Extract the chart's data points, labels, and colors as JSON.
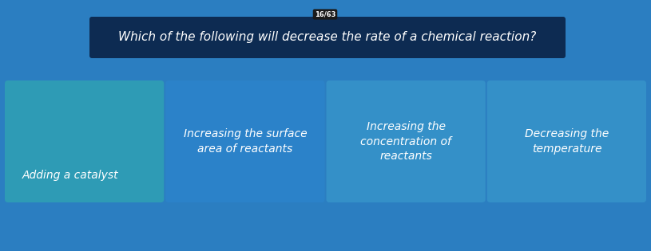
{
  "title": "Which of the following will decrease the rate of a chemical reaction?",
  "title_badge": "16/63",
  "background_color": "#2B7EC1",
  "title_box_color": "#0D2B52",
  "title_text_color": "#FFFFFF",
  "badge_color": "#1A1A1A",
  "badge_text_color": "#FFFFFF",
  "options": [
    {
      "lines": [
        "Adding a catalyst"
      ],
      "color": "#2E9BB5"
    },
    {
      "lines": [
        "Increasing the surface",
        "area of reactants"
      ],
      "color": "#2B82C9"
    },
    {
      "lines": [
        "Increasing the",
        "concentration of",
        "reactants"
      ],
      "color": "#3490C8"
    },
    {
      "lines": [
        "Decreasing the",
        "temperature"
      ],
      "color": "#3490C8"
    }
  ],
  "option_text_color": "#FFFFFF",
  "title_fontsize": 11,
  "option_fontsize": 10,
  "badge_fontsize": 6,
  "bg_top_color": "#3B8DD4",
  "bg_bottom_color": "#1A5FA8"
}
